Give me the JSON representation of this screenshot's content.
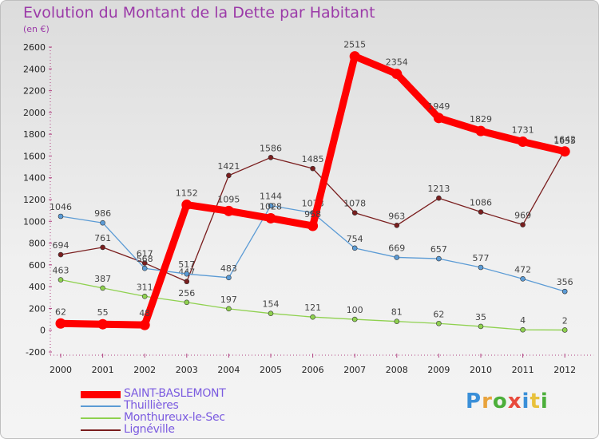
{
  "title": "Evolution du Montant de la Dette par Habitant",
  "subtitle": "(en €)",
  "brand": "Proxiti",
  "chart_data": {
    "type": "line",
    "x": [
      "2000",
      "2001",
      "2002",
      "2003",
      "2004",
      "2005",
      "2006",
      "2007",
      "2008",
      "2009",
      "2010",
      "2011",
      "2012"
    ],
    "ylim": [
      -200,
      2600
    ],
    "yticks": [
      -200,
      0,
      200,
      400,
      600,
      800,
      1000,
      1200,
      1400,
      1600,
      1800,
      2000,
      2200,
      2400,
      2600
    ],
    "grid": false,
    "legend_position": "bottom-left",
    "series": [
      {
        "name": "SAINT-BASLEMONT",
        "color": "#ff0000",
        "values": [
          62,
          55,
          48,
          1152,
          1095,
          1028,
          958,
          2515,
          2354,
          1949,
          1829,
          1731,
          1642
        ]
      },
      {
        "name": "Thuillières",
        "color": "#5b9bd5",
        "values": [
          1046,
          986,
          568,
          517,
          483,
          1144,
          1078,
          754,
          669,
          657,
          577,
          472,
          356
        ]
      },
      {
        "name": "Monthureux-le-Sec",
        "color": "#8fd14f",
        "values": [
          463,
          387,
          311,
          256,
          197,
          154,
          121,
          100,
          81,
          62,
          35,
          4,
          2
        ]
      },
      {
        "name": "Lignéville",
        "color": "#7a1e1e",
        "values": [
          694,
          761,
          617,
          447,
          1421,
          1586,
          1485,
          1078,
          963,
          1213,
          1086,
          969,
          1655
        ]
      }
    ]
  }
}
